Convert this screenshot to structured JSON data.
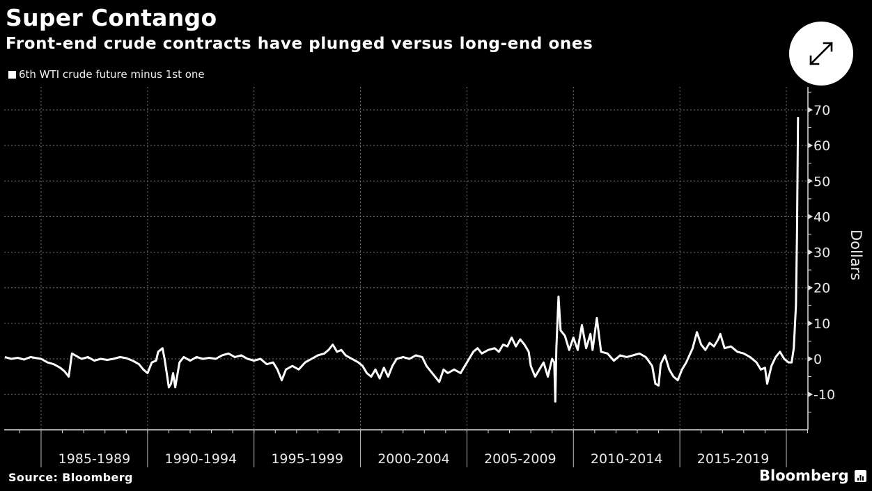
{
  "header": {
    "title": "Super Contango",
    "subtitle": "Front-end crude contracts have plunged versus long-end ones",
    "expand_icon": "expand-arrows-icon"
  },
  "footer": {
    "source": "Source: Bloomberg",
    "brand": "Bloomberg",
    "brand_icon": "bloomberg-chart-icon"
  },
  "chart_data": {
    "type": "line",
    "title": "Super Contango",
    "subtitle": "Front-end crude contracts have plunged versus long-end ones",
    "legend": [
      {
        "name": "6th WTI crude future minus 1st one",
        "color": "#ffffff"
      }
    ],
    "legend_position": "top-left",
    "xlabel": "",
    "ylabel": "Dollars",
    "y_axis_side": "right",
    "ylim": [
      -20,
      76
    ],
    "yticks": [
      -10,
      0,
      10,
      20,
      30,
      40,
      50,
      60,
      70
    ],
    "xlim": [
      1983.25,
      2021.0
    ],
    "x_category_labels": [
      "1985-1989",
      "1990-1994",
      "1995-1999",
      "2000-2004",
      "2005-2009",
      "2010-2014",
      "2015-2019"
    ],
    "x_boundaries": [
      1985,
      1990,
      1995,
      2000,
      2005,
      2010,
      2015,
      2020
    ],
    "grid": true,
    "series": [
      {
        "name": "6th WTI crude future minus 1st one",
        "points": [
          [
            1983.3,
            0.5
          ],
          [
            1983.6,
            0.0
          ],
          [
            1983.9,
            0.3
          ],
          [
            1984.2,
            -0.2
          ],
          [
            1984.5,
            0.5
          ],
          [
            1984.8,
            0.2
          ],
          [
            1985.0,
            0.0
          ],
          [
            1985.3,
            -1.0
          ],
          [
            1985.6,
            -1.5
          ],
          [
            1985.9,
            -2.5
          ],
          [
            1986.1,
            -3.5
          ],
          [
            1986.3,
            -5.0
          ],
          [
            1986.45,
            1.5
          ],
          [
            1986.6,
            1.0
          ],
          [
            1986.9,
            0.0
          ],
          [
            1987.2,
            0.5
          ],
          [
            1987.5,
            -0.5
          ],
          [
            1987.8,
            0.0
          ],
          [
            1988.1,
            -0.3
          ],
          [
            1988.4,
            0.0
          ],
          [
            1988.7,
            0.5
          ],
          [
            1989.0,
            0.2
          ],
          [
            1989.3,
            -0.5
          ],
          [
            1989.6,
            -1.5
          ],
          [
            1989.8,
            -3.0
          ],
          [
            1990.0,
            -4.0
          ],
          [
            1990.2,
            -1.0
          ],
          [
            1990.4,
            -0.5
          ],
          [
            1990.5,
            2.0
          ],
          [
            1990.7,
            3.0
          ],
          [
            1990.8,
            0.0
          ],
          [
            1990.9,
            -4.0
          ],
          [
            1991.0,
            -8.0
          ],
          [
            1991.1,
            -7.0
          ],
          [
            1991.2,
            -4.0
          ],
          [
            1991.3,
            -8.0
          ],
          [
            1991.5,
            -1.0
          ],
          [
            1991.7,
            0.5
          ],
          [
            1992.0,
            -0.5
          ],
          [
            1992.3,
            0.5
          ],
          [
            1992.6,
            0.0
          ],
          [
            1992.9,
            0.3
          ],
          [
            1993.2,
            0.0
          ],
          [
            1993.5,
            1.0
          ],
          [
            1993.8,
            1.5
          ],
          [
            1994.1,
            0.5
          ],
          [
            1994.4,
            1.0
          ],
          [
            1994.7,
            0.0
          ],
          [
            1995.0,
            -0.5
          ],
          [
            1995.3,
            0.0
          ],
          [
            1995.6,
            -1.5
          ],
          [
            1995.9,
            -1.0
          ],
          [
            1996.1,
            -3.0
          ],
          [
            1996.3,
            -6.0
          ],
          [
            1996.5,
            -3.0
          ],
          [
            1996.8,
            -2.0
          ],
          [
            1997.1,
            -3.0
          ],
          [
            1997.4,
            -1.0
          ],
          [
            1997.7,
            0.0
          ],
          [
            1998.0,
            1.0
          ],
          [
            1998.3,
            1.5
          ],
          [
            1998.5,
            2.5
          ],
          [
            1998.7,
            4.0
          ],
          [
            1998.9,
            2.0
          ],
          [
            1999.1,
            2.5
          ],
          [
            1999.3,
            1.0
          ],
          [
            1999.6,
            0.0
          ],
          [
            1999.9,
            -1.0
          ],
          [
            2000.1,
            -2.0
          ],
          [
            2000.3,
            -4.0
          ],
          [
            2000.5,
            -5.0
          ],
          [
            2000.7,
            -3.0
          ],
          [
            2000.9,
            -5.5
          ],
          [
            2001.1,
            -2.5
          ],
          [
            2001.3,
            -5.0
          ],
          [
            2001.5,
            -2.0
          ],
          [
            2001.7,
            0.0
          ],
          [
            2002.0,
            0.5
          ],
          [
            2002.3,
            0.0
          ],
          [
            2002.6,
            1.0
          ],
          [
            2002.9,
            0.5
          ],
          [
            2003.1,
            -2.0
          ],
          [
            2003.3,
            -3.5
          ],
          [
            2003.5,
            -5.0
          ],
          [
            2003.7,
            -6.5
          ],
          [
            2003.9,
            -3.0
          ],
          [
            2004.1,
            -4.0
          ],
          [
            2004.4,
            -3.0
          ],
          [
            2004.7,
            -4.0
          ],
          [
            2004.9,
            -2.0
          ],
          [
            2005.1,
            0.0
          ],
          [
            2005.3,
            2.0
          ],
          [
            2005.5,
            3.0
          ],
          [
            2005.7,
            1.5
          ],
          [
            2006.0,
            2.5
          ],
          [
            2006.3,
            3.0
          ],
          [
            2006.5,
            2.0
          ],
          [
            2006.7,
            4.0
          ],
          [
            2006.9,
            3.5
          ],
          [
            2007.1,
            6.0
          ],
          [
            2007.3,
            3.5
          ],
          [
            2007.5,
            5.5
          ],
          [
            2007.7,
            4.0
          ],
          [
            2007.9,
            2.0
          ],
          [
            2008.0,
            -2.0
          ],
          [
            2008.2,
            -5.0
          ],
          [
            2008.4,
            -3.0
          ],
          [
            2008.6,
            -1.0
          ],
          [
            2008.8,
            -5.0
          ],
          [
            2009.0,
            0.0
          ],
          [
            2009.1,
            -1.0
          ],
          [
            2009.15,
            -12.0
          ],
          [
            2009.2,
            3.0
          ],
          [
            2009.3,
            17.5
          ],
          [
            2009.4,
            8.0
          ],
          [
            2009.6,
            6.5
          ],
          [
            2009.8,
            2.5
          ],
          [
            2010.0,
            6.0
          ],
          [
            2010.2,
            2.5
          ],
          [
            2010.4,
            9.5
          ],
          [
            2010.6,
            3.0
          ],
          [
            2010.8,
            7.0
          ],
          [
            2010.9,
            2.5
          ],
          [
            2011.1,
            11.5
          ],
          [
            2011.3,
            2.0
          ],
          [
            2011.6,
            1.5
          ],
          [
            2011.9,
            -0.5
          ],
          [
            2012.2,
            1.0
          ],
          [
            2012.5,
            0.5
          ],
          [
            2012.8,
            1.0
          ],
          [
            2013.1,
            1.5
          ],
          [
            2013.4,
            0.5
          ],
          [
            2013.7,
            -2.0
          ],
          [
            2013.85,
            -7.0
          ],
          [
            2014.0,
            -7.5
          ],
          [
            2014.1,
            -1.5
          ],
          [
            2014.3,
            1.0
          ],
          [
            2014.5,
            -3.0
          ],
          [
            2014.7,
            -5.0
          ],
          [
            2014.9,
            -6.0
          ],
          [
            2015.1,
            -3.0
          ],
          [
            2015.3,
            -1.0
          ],
          [
            2015.6,
            3.0
          ],
          [
            2015.8,
            7.5
          ],
          [
            2016.0,
            4.0
          ],
          [
            2016.2,
            2.5
          ],
          [
            2016.4,
            4.5
          ],
          [
            2016.6,
            3.5
          ],
          [
            2016.8,
            5.5
          ],
          [
            2016.9,
            7.0
          ],
          [
            2017.1,
            3.0
          ],
          [
            2017.4,
            3.5
          ],
          [
            2017.7,
            2.0
          ],
          [
            2018.0,
            1.5
          ],
          [
            2018.3,
            0.5
          ],
          [
            2018.6,
            -1.0
          ],
          [
            2018.8,
            -3.0
          ],
          [
            2019.0,
            -2.5
          ],
          [
            2019.1,
            -7.0
          ],
          [
            2019.3,
            -2.0
          ],
          [
            2019.5,
            0.5
          ],
          [
            2019.7,
            2.0
          ],
          [
            2019.9,
            0.0
          ],
          [
            2020.1,
            -1.0
          ],
          [
            2020.25,
            -1.0
          ],
          [
            2020.35,
            3.0
          ],
          [
            2020.45,
            15.0
          ],
          [
            2020.5,
            35.0
          ],
          [
            2020.55,
            68.0
          ]
        ]
      }
    ]
  }
}
